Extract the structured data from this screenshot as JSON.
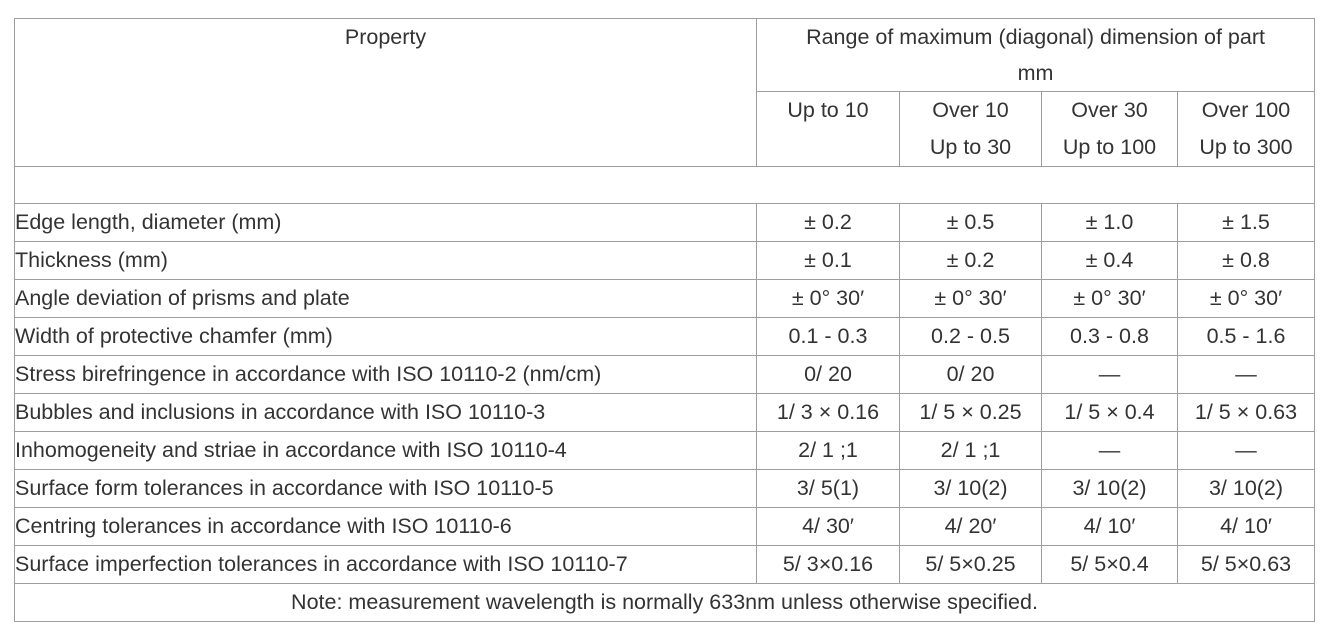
{
  "header": {
    "property": "Property",
    "range_line1": "Range of maximum (diagonal) dimension of part",
    "range_line2": "mm",
    "ranges": [
      {
        "line1": "Up to 10",
        "line2": ""
      },
      {
        "line1": "Over 10",
        "line2": "Up to 30"
      },
      {
        "line1": "Over 30",
        "line2": "Up to 100"
      },
      {
        "line1": "Over 100",
        "line2": "Up to 300"
      }
    ]
  },
  "rows": [
    {
      "property": "Edge length, diameter (mm)",
      "values": [
        "± 0.2",
        "± 0.5",
        "± 1.0",
        "± 1.5"
      ]
    },
    {
      "property": "Thickness (mm)",
      "values": [
        "± 0.1",
        "± 0.2",
        "± 0.4",
        "± 0.8"
      ]
    },
    {
      "property": "Angle deviation of prisms and plate",
      "values": [
        "± 0° 30′",
        "± 0° 30′",
        "± 0° 30′",
        "± 0° 30′"
      ]
    },
    {
      "property": "Width of protective chamfer (mm)",
      "values": [
        "0.1 - 0.3",
        "0.2 - 0.5",
        "0.3 - 0.8",
        "0.5 - 1.6"
      ]
    },
    {
      "property": "Stress birefringence in accordance with ISO 10110-2 (nm/cm)",
      "values": [
        "0/ 20",
        "0/ 20",
        "—",
        "—"
      ]
    },
    {
      "property": "Bubbles and inclusions in accordance with ISO 10110-3",
      "values": [
        "1/ 3 × 0.16",
        "1/ 5 × 0.25",
        "1/ 5 × 0.4",
        "1/ 5 × 0.63"
      ]
    },
    {
      "property": "Inhomogeneity and striae in accordance with ISO 10110-4",
      "values": [
        "2/ 1 ;1",
        "2/ 1 ;1",
        "—",
        "—"
      ]
    },
    {
      "property": "Surface form tolerances in accordance with ISO 10110-5",
      "values": [
        "3/ 5(1)",
        "3/ 10(2)",
        "3/ 10(2)",
        "3/ 10(2)"
      ]
    },
    {
      "property": "Centring tolerances in accordance with ISO 10110-6",
      "values": [
        "4/ 30′",
        "4/ 20′",
        "4/ 10′",
        "4/ 10′"
      ]
    },
    {
      "property": "Surface imperfection tolerances in accordance with ISO 10110-7",
      "values": [
        "5/ 3×0.16",
        "5/ 5×0.25",
        "5/ 5×0.4",
        "5/ 5×0.63"
      ]
    }
  ],
  "note": "Note: measurement wavelength is normally 633nm unless otherwise specified."
}
